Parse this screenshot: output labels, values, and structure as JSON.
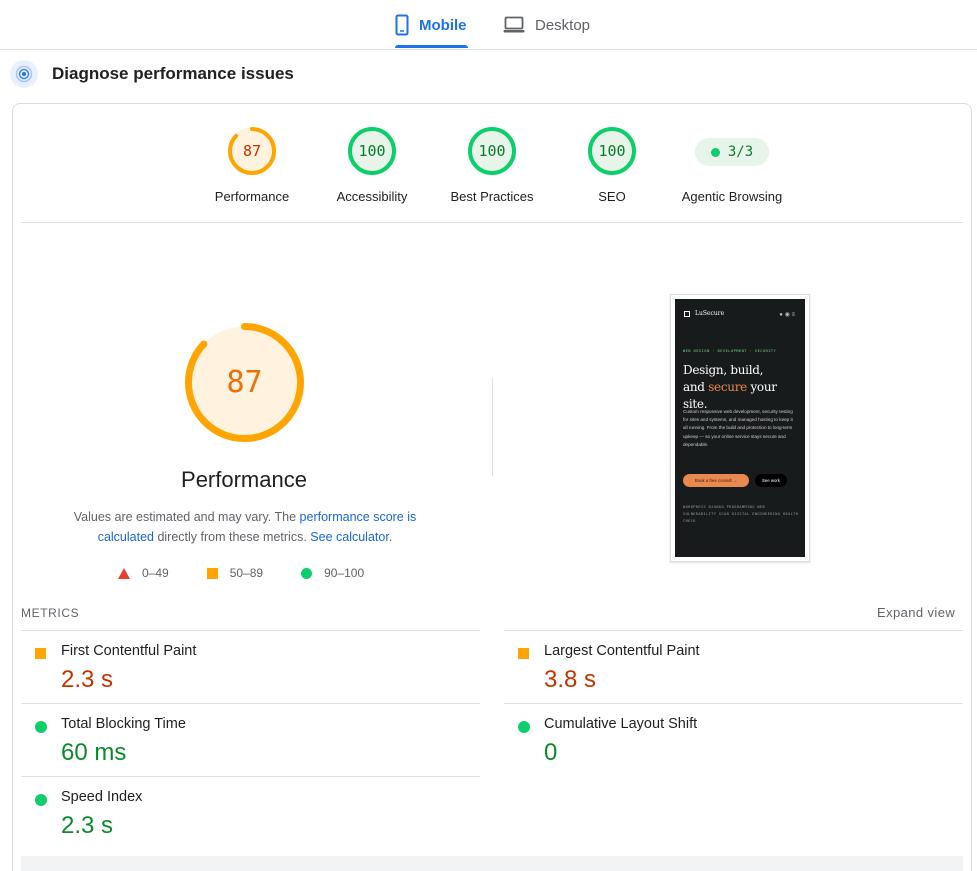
{
  "tabs": [
    {
      "label": "Mobile",
      "icon": "phone-icon",
      "active": true
    },
    {
      "label": "Desktop",
      "icon": "laptop-icon",
      "active": false
    }
  ],
  "diagnose": {
    "title": "Diagnose performance issues",
    "icon": "target-icon"
  },
  "scores": [
    {
      "label": "Performance",
      "value": "87",
      "score": 87,
      "status": "average"
    },
    {
      "label": "Accessibility",
      "value": "100",
      "score": 100,
      "status": "pass"
    },
    {
      "label": "Best Practices",
      "value": "100",
      "score": 100,
      "status": "pass"
    },
    {
      "label": "SEO",
      "value": "100",
      "score": 100,
      "status": "pass"
    }
  ],
  "agentic": {
    "label": "Agentic Browsing",
    "value": "3/3"
  },
  "main_score": {
    "value": "87",
    "score": 87,
    "title": "Performance"
  },
  "note": {
    "text1": "Values are estimated and may vary. The ",
    "link1": "performance score is calculated",
    "text2": " directly from these metrics. ",
    "link2": "See calculator",
    "text3": "."
  },
  "legend": [
    {
      "shape": "triangle",
      "label": "0–49",
      "color": "#eb3e2f"
    },
    {
      "shape": "square",
      "label": "50–89",
      "color": "#ffa400"
    },
    {
      "shape": "circle",
      "label": "90–100",
      "color": "#0cce6b"
    }
  ],
  "screenshot": {
    "brand": "LuSecure",
    "tags": "WEB DESIGN · DEVELOPMENT · SECURITY",
    "headline_1": "Design, build,",
    "headline_2a": "and ",
    "headline_accent": "secure",
    "headline_2b": " your site.",
    "paragraph": "Custom responsive web development, security testing for sites and systems, and managed hosting to keep it all running. From the build and protection to long-term upkeep — so your online service stays secure and dependable.",
    "cta_primary": "Book a free consult →",
    "cta_secondary": "See work",
    "keywords": "WORDPRESS  DJANGO  PROGRAMMING  WEB  VULNERABILITY SCAN  DIGITAL ENGINEERING  HEALTH CHECK"
  },
  "metrics": {
    "heading": "METRICS",
    "expand": "Expand view",
    "items": [
      {
        "label": "First Contentful Paint",
        "value": "2.3 s",
        "status": "average"
      },
      {
        "label": "Largest Contentful Paint",
        "value": "3.8 s",
        "status": "average"
      },
      {
        "label": "Total Blocking Time",
        "value": "60 ms",
        "status": "pass"
      },
      {
        "label": "Cumulative Layout Shift",
        "value": "0",
        "status": "pass"
      },
      {
        "label": "Speed Index",
        "value": "2.3 s",
        "status": "pass"
      }
    ]
  },
  "colors": {
    "accent": "#1a73e8",
    "pass": "#0cce6b",
    "average": "#ffa400",
    "fail": "#eb3e2f"
  }
}
